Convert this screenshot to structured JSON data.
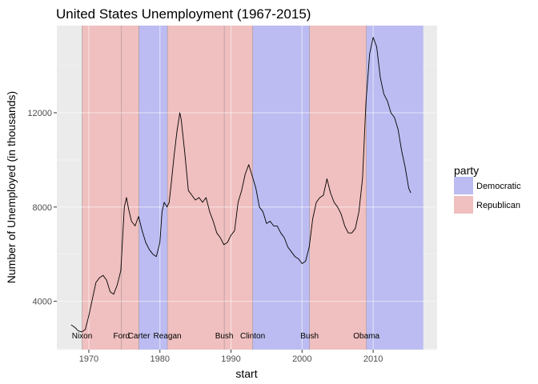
{
  "chart_data": {
    "type": "line",
    "title": "United States Unemployment (1967-2015)",
    "xlabel": "start",
    "ylabel": "Number of Unemployed (in thousands)",
    "xlim": [
      1965.5,
      2019
    ],
    "ylim": [
      1950,
      15700
    ],
    "x_ticks": [
      1970,
      1980,
      1990,
      2000,
      2010
    ],
    "y_ticks": [
      4000,
      8000,
      12000
    ],
    "grid": true,
    "legend": {
      "title": "party",
      "position": "right",
      "entries": [
        {
          "label": "Democratic",
          "color": "#bcbcf2"
        },
        {
          "label": "Republican",
          "color": "#f0bfbf"
        }
      ]
    },
    "colors": {
      "Democratic": "#bcbcf2",
      "Republican": "#f0bfbf",
      "panel": "#ebebeb",
      "line": "#000000"
    },
    "presidencies": [
      {
        "name": "Nixon",
        "start": 1969.05,
        "end": 1974.6,
        "party": "Republican"
      },
      {
        "name": "Ford",
        "start": 1974.6,
        "end": 1977.05,
        "party": "Republican"
      },
      {
        "name": "Carter",
        "start": 1977.05,
        "end": 1981.05,
        "party": "Democratic"
      },
      {
        "name": "Reagan",
        "start": 1981.05,
        "end": 1989.05,
        "party": "Republican"
      },
      {
        "name": "Bush",
        "start": 1989.05,
        "end": 1993.05,
        "party": "Republican"
      },
      {
        "name": "Clinton",
        "start": 1993.05,
        "end": 2001.05,
        "party": "Democratic"
      },
      {
        "name": "Bush",
        "start": 2001.05,
        "end": 2009.05,
        "party": "Republican"
      },
      {
        "name": "Obama",
        "start": 2009.05,
        "end": 2017.05,
        "party": "Democratic"
      }
    ],
    "series": [
      {
        "x": [
          1967.5,
          1968.0,
          1968.5,
          1969.0,
          1969.5,
          1970.0,
          1970.5,
          1971.0,
          1971.5,
          1972.0,
          1972.5,
          1973.0,
          1973.5,
          1974.0,
          1974.5,
          1975.0,
          1975.3,
          1975.6,
          1976.0,
          1976.5,
          1977.0,
          1977.5,
          1978.0,
          1978.5,
          1979.0,
          1979.5,
          1980.0,
          1980.3,
          1980.6,
          1981.0,
          1981.3,
          1981.6,
          1982.0,
          1982.4,
          1982.8,
          1983.0,
          1983.5,
          1984.0,
          1984.5,
          1985.0,
          1985.5,
          1986.0,
          1986.5,
          1987.0,
          1987.5,
          1988.0,
          1988.5,
          1989.0,
          1989.5,
          1990.0,
          1990.5,
          1991.0,
          1991.5,
          1992.0,
          1992.5,
          1993.0,
          1993.5,
          1994.0,
          1994.5,
          1995.0,
          1995.5,
          1996.0,
          1996.5,
          1997.0,
          1997.5,
          1998.0,
          1998.5,
          1999.0,
          1999.5,
          2000.0,
          2000.5,
          2001.0,
          2001.5,
          2002.0,
          2002.5,
          2003.0,
          2003.5,
          2004.0,
          2004.5,
          2005.0,
          2005.5,
          2006.0,
          2006.5,
          2007.0,
          2007.5,
          2008.0,
          2008.5,
          2009.0,
          2009.5,
          2010.0,
          2010.5,
          2011.0,
          2011.5,
          2012.0,
          2012.5,
          2013.0,
          2013.5,
          2014.0,
          2014.5,
          2015.0,
          2015.3
        ],
        "y": [
          3000,
          2900,
          2750,
          2700,
          2800,
          3400,
          4100,
          4800,
          5000,
          5100,
          4900,
          4400,
          4300,
          4700,
          5300,
          8000,
          8400,
          7900,
          7400,
          7200,
          7600,
          7000,
          6500,
          6200,
          6000,
          5900,
          6500,
          7800,
          8200,
          8000,
          8200,
          9000,
          10200,
          11200,
          12000,
          11700,
          10300,
          8700,
          8500,
          8300,
          8400,
          8200,
          8400,
          7800,
          7400,
          6900,
          6700,
          6400,
          6500,
          6800,
          7000,
          8200,
          8700,
          9400,
          9800,
          9300,
          8800,
          8000,
          7800,
          7300,
          7400,
          7200,
          7200,
          6900,
          6700,
          6300,
          6100,
          5900,
          5800,
          5600,
          5700,
          6300,
          7500,
          8200,
          8400,
          8500,
          9200,
          8600,
          8200,
          8000,
          7700,
          7200,
          6900,
          6900,
          7100,
          7800,
          9200,
          12500,
          14500,
          15200,
          14800,
          13500,
          12800,
          12500,
          12000,
          11800,
          11300,
          10400,
          9700,
          8800,
          8600
        ]
      }
    ]
  }
}
